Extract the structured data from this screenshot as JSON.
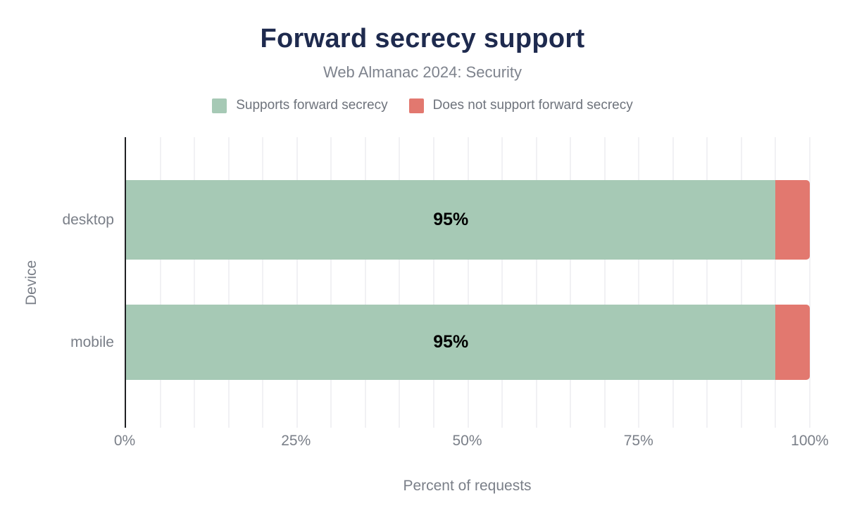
{
  "chart_data": {
    "type": "bar",
    "orientation": "horizontal",
    "stacked": true,
    "title": "Forward secrecy support",
    "subtitle": "Web Almanac 2024: Security",
    "categories": [
      "desktop",
      "mobile"
    ],
    "series": [
      {
        "name": "Supports forward secrecy",
        "color": "#a6c9b5",
        "values": [
          95,
          95
        ]
      },
      {
        "name": "Does not support forward secrecy",
        "color": "#e2786f",
        "values": [
          5,
          5
        ]
      }
    ],
    "bar_labels": [
      "95%",
      "95%"
    ],
    "xlabel": "Percent of requests",
    "ylabel": "Device",
    "xlim": [
      0,
      100
    ],
    "x_ticks": [
      {
        "label": "0%",
        "value": 0
      },
      {
        "label": "25%",
        "value": 25
      },
      {
        "label": "50%",
        "value": 50
      },
      {
        "label": "75%",
        "value": 75
      },
      {
        "label": "100%",
        "value": 100
      }
    ],
    "gridline_step_percent": 5,
    "grid": "vertical",
    "legend_position": "top",
    "colors": {
      "title": "#1e2a4e",
      "subtitle_text": "#7e838d",
      "legend_text": "#6e737c",
      "axis_text": "#7a7f88",
      "gridline": "#f1f1f4",
      "axis_line": "#1f2023",
      "bar_label_text": "#000000"
    }
  }
}
